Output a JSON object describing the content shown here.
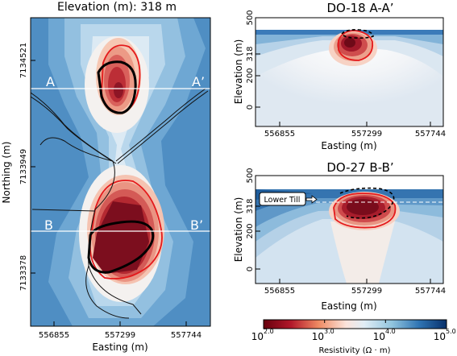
{
  "chart_data": [
    {
      "type": "heatmap",
      "title": "Elevation (m): 318 m",
      "xlabel": "Easting (m)",
      "ylabel": "Northing (m)",
      "x_ticks": [
        "556855",
        "557299",
        "557744"
      ],
      "y_ticks": [
        "7134521",
        "7133949",
        "7133378"
      ],
      "section_lines": [
        {
          "start": "A",
          "end": "A’"
        },
        {
          "start": "B",
          "end": "B’"
        }
      ]
    },
    {
      "type": "heatmap",
      "title": "DO-18 A-A’",
      "xlabel": "Easting (m)",
      "ylabel": "Elevation (m)",
      "x_ticks": [
        "556855",
        "557299",
        "557744"
      ],
      "y_ticks": [
        "500",
        "318",
        "200",
        "0"
      ]
    },
    {
      "type": "heatmap",
      "title": "DO-27 B-B’",
      "xlabel": "Easting (m)",
      "ylabel": "Elevation (m)",
      "x_ticks": [
        "556855",
        "557299",
        "557744"
      ],
      "y_ticks": [
        "500",
        "318",
        "200",
        "0"
      ],
      "annotation": "Lower Till"
    }
  ],
  "colorbar": {
    "label": "Resistivity (Ω · m)",
    "ticks": [
      "10",
      "10",
      "10",
      "10"
    ],
    "exponents": [
      "2.0",
      "3.0",
      "4.0",
      "5.0"
    ],
    "range_log10": [
      2.0,
      5.0
    ],
    "colors": {
      "low": "#6e0e1c",
      "mid": "#f7f4f2",
      "high": "#08306b"
    }
  }
}
